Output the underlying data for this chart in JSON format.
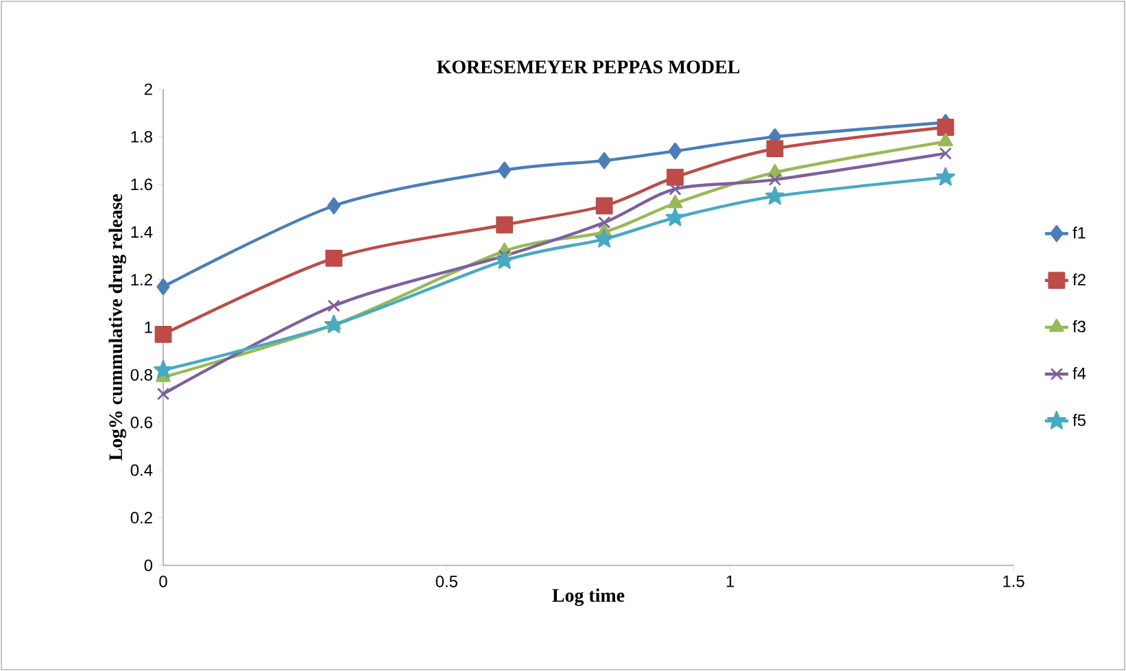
{
  "chart_data": {
    "type": "line",
    "title": "KORESEMEYER PEPPAS MODEL",
    "xlabel": "Log time",
    "ylabel": "Log% cummulative drug release",
    "xlim": [
      0,
      1.5
    ],
    "xticks": [
      0,
      0.5,
      1,
      1.5
    ],
    "ylim": [
      0,
      2
    ],
    "yticks": [
      0,
      0.2,
      0.4,
      0.6,
      0.8,
      1,
      1.2,
      1.4,
      1.6,
      1.8,
      2
    ],
    "x": [
      0,
      0.301,
      0.602,
      0.778,
      0.903,
      1.079,
      1.38
    ],
    "series": [
      {
        "name": "f1",
        "color": "#4a7ebb",
        "marker": "diamond",
        "values": [
          1.17,
          1.51,
          1.66,
          1.7,
          1.74,
          1.8,
          1.86
        ]
      },
      {
        "name": "f2",
        "color": "#be4b48",
        "marker": "square",
        "values": [
          0.97,
          1.29,
          1.43,
          1.51,
          1.63,
          1.75,
          1.84
        ]
      },
      {
        "name": "f3",
        "color": "#98b954",
        "marker": "triangle",
        "values": [
          0.79,
          1.01,
          1.32,
          1.4,
          1.52,
          1.65,
          1.78
        ]
      },
      {
        "name": "f4",
        "color": "#7d5fa0",
        "marker": "cross",
        "values": [
          0.72,
          1.09,
          1.3,
          1.44,
          1.58,
          1.62,
          1.73
        ]
      },
      {
        "name": "f5",
        "color": "#46aac5",
        "marker": "star",
        "values": [
          0.82,
          1.01,
          1.28,
          1.37,
          1.46,
          1.55,
          1.63
        ]
      }
    ],
    "legend": "right",
    "grid": false,
    "line_style": "solid"
  }
}
